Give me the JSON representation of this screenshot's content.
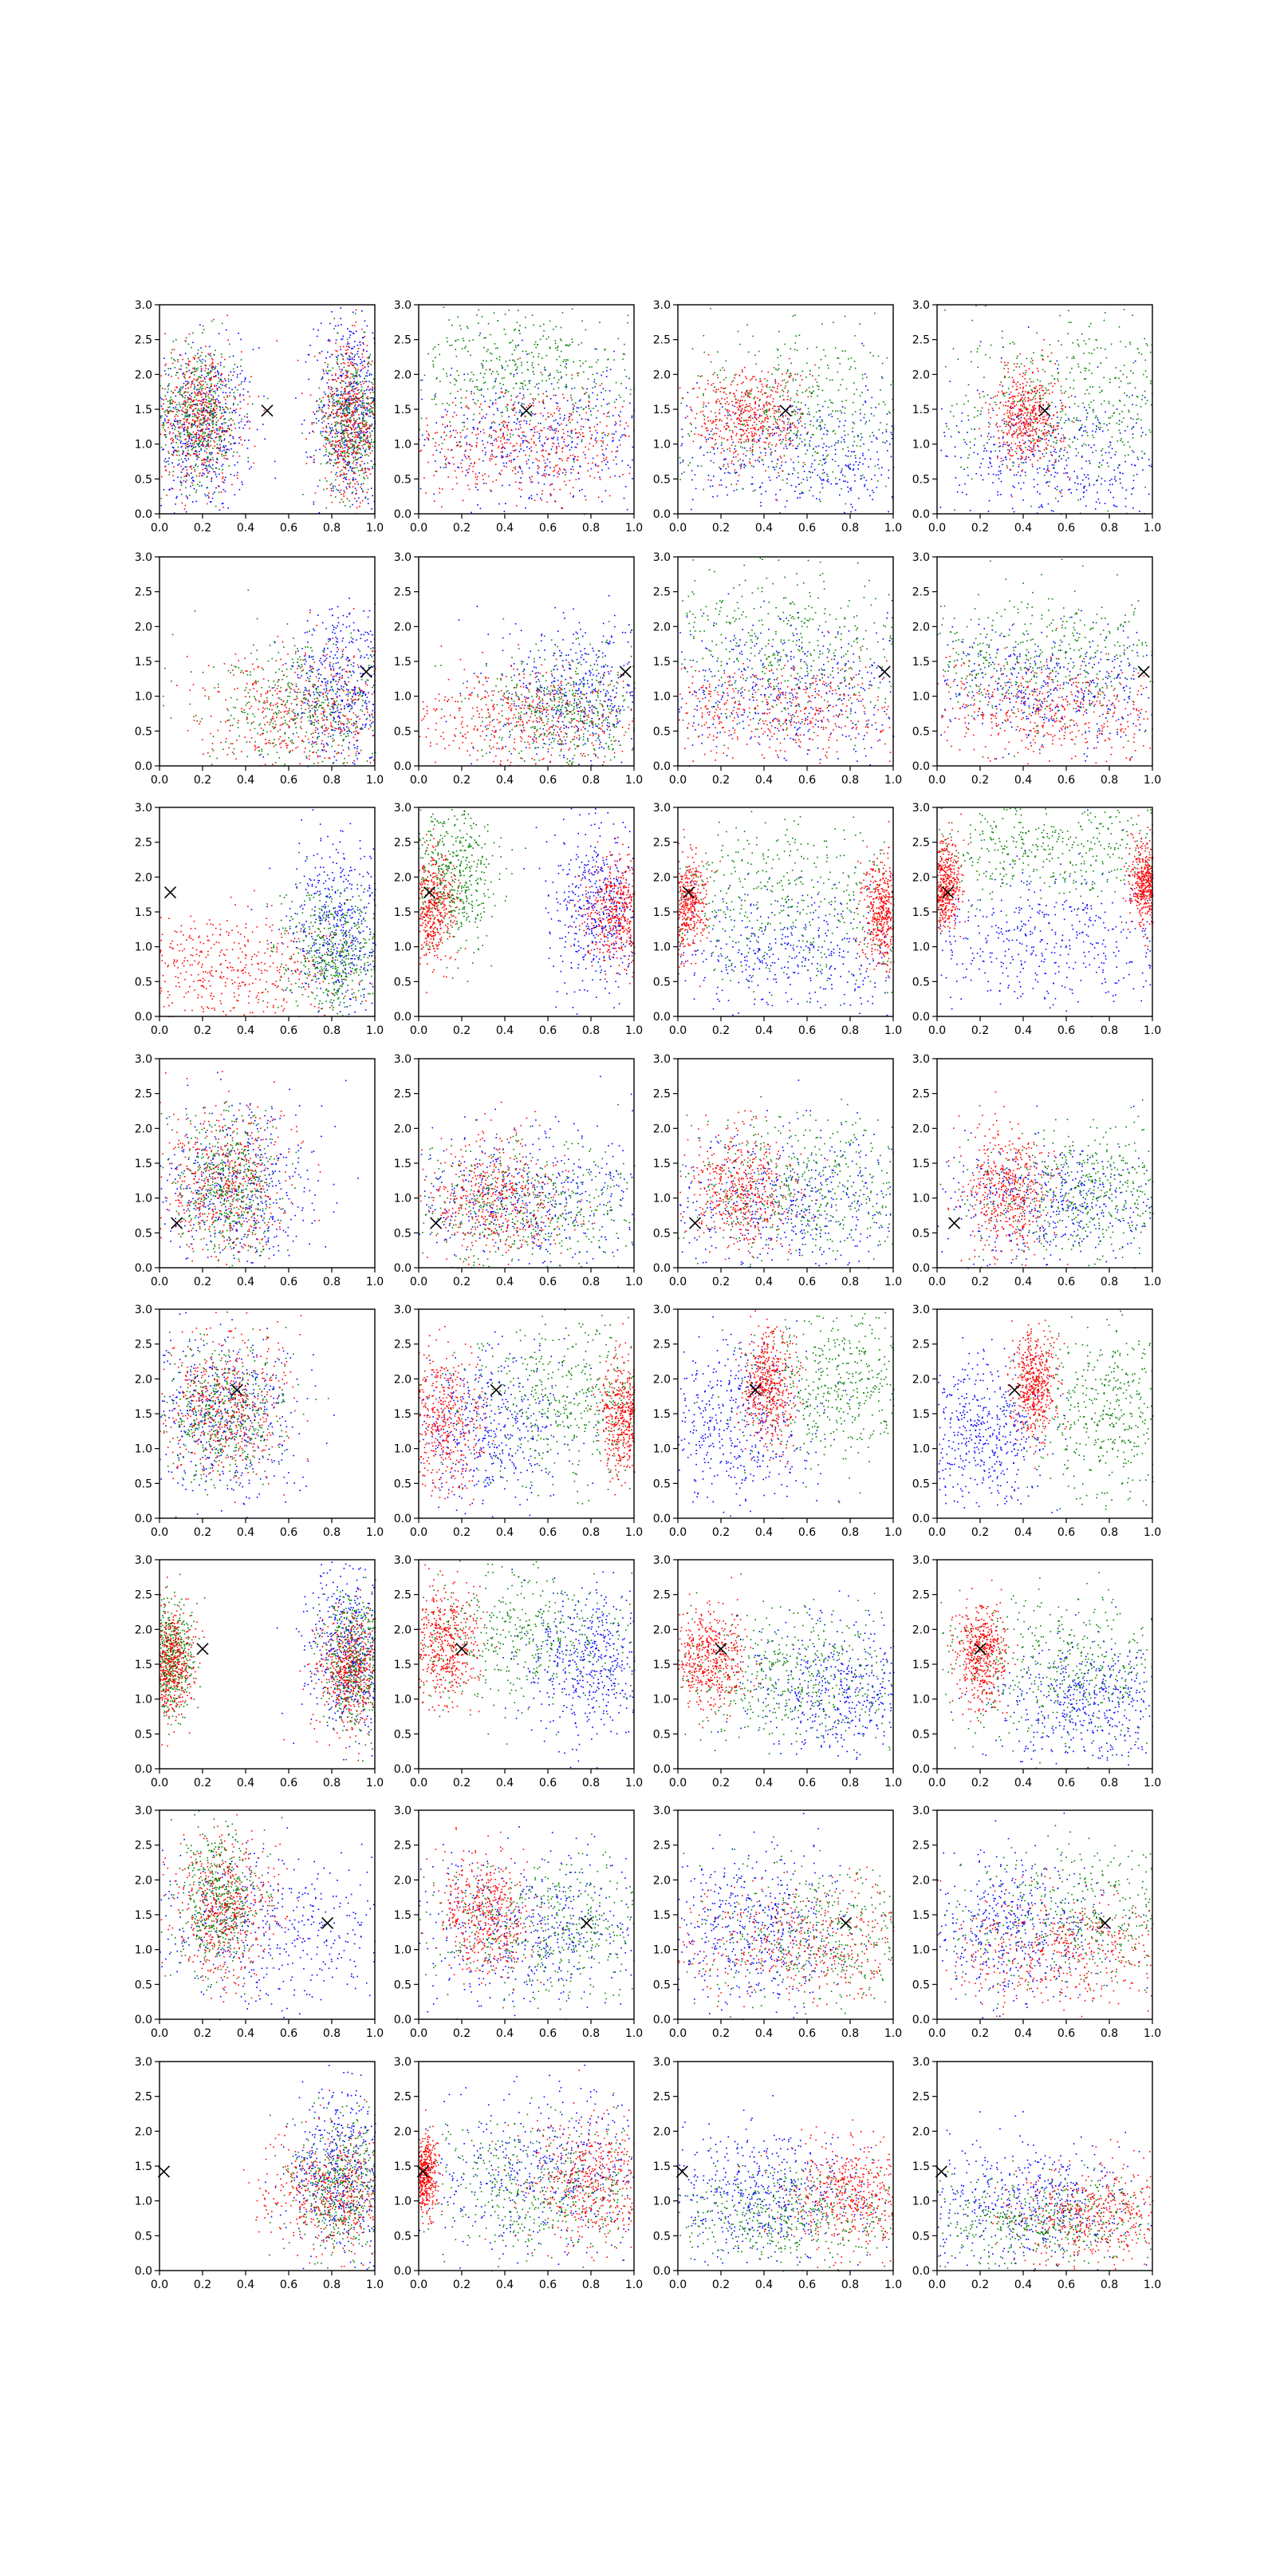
{
  "chart_data": {
    "type": "scatter",
    "layout": {
      "rows": 8,
      "cols": 4
    },
    "xlim": [
      0,
      1
    ],
    "ylim": [
      0,
      3
    ],
    "xticks": [
      "0.0",
      "0.2",
      "0.4",
      "0.6",
      "0.8",
      "1.0"
    ],
    "yticks": [
      "0.0",
      "0.5",
      "1.0",
      "1.5",
      "2.0",
      "2.5",
      "3.0"
    ],
    "grid": false,
    "series_colors": {
      "red": "#ff0000",
      "green": "#008000",
      "blue": "#0000ff"
    },
    "marker_color": "#000000",
    "rows": [
      {
        "marker": [
          0.5,
          1.48
        ],
        "panels": [
          {
            "red": [
              [
                0.18,
                1.4,
                0.1,
                0.5
              ],
              [
                0.88,
                1.3,
                0.08,
                0.55
              ]
            ],
            "green": [
              [
                0.18,
                1.45,
                0.1,
                0.5
              ],
              [
                0.9,
                1.3,
                0.08,
                0.55
              ]
            ],
            "blue": [
              [
                0.2,
                1.2,
                0.12,
                0.6
              ],
              [
                0.88,
                1.5,
                0.08,
                0.7
              ]
            ]
          },
          {
            "red": [
              [
                0.5,
                1.0,
                0.3,
                0.4
              ]
            ],
            "green": [
              [
                0.5,
                2.0,
                0.3,
                0.5
              ]
            ],
            "blue": [
              [
                0.55,
                1.1,
                0.3,
                0.5
              ]
            ]
          },
          {
            "red": [
              [
                0.33,
                1.4,
                0.13,
                0.35
              ]
            ],
            "green": [
              [
                0.55,
                1.5,
                0.3,
                0.6
              ]
            ],
            "blue": [
              [
                0.6,
                0.8,
                0.35,
                0.5
              ]
            ]
          },
          {
            "red": [
              [
                0.42,
                1.4,
                0.08,
                0.35
              ]
            ],
            "green": [
              [
                0.65,
                1.6,
                0.3,
                0.6
              ]
            ],
            "blue": [
              [
                0.55,
                0.8,
                0.3,
                0.5
              ]
            ]
          }
        ]
      },
      {
        "marker": [
          0.96,
          1.35
        ],
        "panels": [
          {
            "red": [
              [
                0.7,
                0.8,
                0.25,
                0.45
              ]
            ],
            "green": [
              [
                0.7,
                0.8,
                0.25,
                0.45
              ]
            ],
            "blue": [
              [
                0.85,
                1.1,
                0.12,
                0.6
              ]
            ]
          },
          {
            "red": [
              [
                0.5,
                0.7,
                0.3,
                0.35
              ]
            ],
            "green": [
              [
                0.7,
                0.8,
                0.2,
                0.45
              ]
            ],
            "blue": [
              [
                0.75,
                1.0,
                0.2,
                0.55
              ]
            ]
          },
          {
            "red": [
              [
                0.45,
                0.8,
                0.35,
                0.35
              ]
            ],
            "green": [
              [
                0.5,
                1.7,
                0.35,
                0.6
              ]
            ],
            "blue": [
              [
                0.5,
                1.1,
                0.35,
                0.5
              ]
            ]
          },
          {
            "red": [
              [
                0.55,
                0.8,
                0.35,
                0.35
              ]
            ],
            "green": [
              [
                0.5,
                1.5,
                0.35,
                0.5
              ]
            ],
            "blue": [
              [
                0.5,
                1.1,
                0.35,
                0.45
              ]
            ]
          }
        ]
      },
      {
        "marker": [
          0.05,
          1.78
        ],
        "panels": [
          {
            "red": [
              [
                0.3,
                0.7,
                0.3,
                0.4
              ]
            ],
            "green": [
              [
                0.8,
                0.9,
                0.12,
                0.45
              ]
            ],
            "blue": [
              [
                0.85,
                1.3,
                0.12,
                0.6
              ]
            ]
          },
          {
            "red": [
              [
                0.92,
                1.5,
                0.08,
                0.4
              ],
              [
                0.05,
                1.6,
                0.06,
                0.4
              ]
            ],
            "green": [
              [
                0.15,
                2.0,
                0.1,
                0.5
              ]
            ],
            "blue": [
              [
                0.85,
                1.6,
                0.12,
                0.6
              ]
            ]
          },
          {
            "red": [
              [
                0.03,
                1.6,
                0.05,
                0.35
              ],
              [
                0.95,
                1.5,
                0.05,
                0.4
              ]
            ],
            "green": [
              [
                0.5,
                1.6,
                0.35,
                0.6
              ]
            ],
            "blue": [
              [
                0.5,
                0.9,
                0.35,
                0.5
              ]
            ]
          },
          {
            "red": [
              [
                0.03,
                1.9,
                0.04,
                0.3
              ],
              [
                0.97,
                1.9,
                0.04,
                0.3
              ]
            ],
            "green": [
              [
                0.5,
                2.4,
                0.35,
                0.35
              ]
            ],
            "blue": [
              [
                0.5,
                1.1,
                0.35,
                0.5
              ]
            ]
          }
        ]
      },
      {
        "marker": [
          0.08,
          0.64
        ],
        "panels": [
          {
            "red": [
              [
                0.3,
                1.2,
                0.15,
                0.55
              ]
            ],
            "green": [
              [
                0.32,
                1.2,
                0.12,
                0.5
              ]
            ],
            "blue": [
              [
                0.35,
                1.2,
                0.18,
                0.6
              ]
            ]
          },
          {
            "red": [
              [
                0.35,
                1.0,
                0.15,
                0.45
              ]
            ],
            "green": [
              [
                0.5,
                0.9,
                0.3,
                0.45
              ]
            ],
            "blue": [
              [
                0.5,
                1.0,
                0.3,
                0.5
              ]
            ]
          },
          {
            "red": [
              [
                0.3,
                1.1,
                0.12,
                0.45
              ]
            ],
            "green": [
              [
                0.6,
                1.1,
                0.3,
                0.5
              ]
            ],
            "blue": [
              [
                0.5,
                0.9,
                0.3,
                0.5
              ]
            ]
          },
          {
            "red": [
              [
                0.32,
                1.1,
                0.1,
                0.45
              ]
            ],
            "green": [
              [
                0.7,
                1.1,
                0.25,
                0.5
              ]
            ],
            "blue": [
              [
                0.55,
                0.9,
                0.3,
                0.45
              ]
            ]
          }
        ]
      },
      {
        "marker": [
          0.36,
          1.84
        ],
        "panels": [
          {
            "red": [
              [
                0.3,
                1.6,
                0.15,
                0.5
              ]
            ],
            "green": [
              [
                0.3,
                1.55,
                0.15,
                0.5
              ]
            ],
            "blue": [
              [
                0.3,
                1.5,
                0.18,
                0.6
              ]
            ]
          },
          {
            "red": [
              [
                0.1,
                1.4,
                0.1,
                0.5
              ],
              [
                0.95,
                1.5,
                0.05,
                0.4
              ]
            ],
            "green": [
              [
                0.7,
                1.7,
                0.25,
                0.6
              ]
            ],
            "blue": [
              [
                0.3,
                1.3,
                0.2,
                0.55
              ]
            ]
          },
          {
            "red": [
              [
                0.42,
                1.9,
                0.06,
                0.4
              ]
            ],
            "green": [
              [
                0.75,
                2.0,
                0.2,
                0.55
              ]
            ],
            "blue": [
              [
                0.25,
                1.4,
                0.2,
                0.6
              ]
            ]
          },
          {
            "red": [
              [
                0.45,
                1.9,
                0.05,
                0.35
              ]
            ],
            "green": [
              [
                0.8,
                1.5,
                0.2,
                0.6
              ]
            ],
            "blue": [
              [
                0.2,
                1.2,
                0.15,
                0.55
              ]
            ]
          }
        ]
      },
      {
        "marker": [
          0.2,
          1.72
        ],
        "panels": [
          {
            "red": [
              [
                0.05,
                1.5,
                0.05,
                0.4
              ],
              [
                0.88,
                1.4,
                0.08,
                0.4
              ]
            ],
            "green": [
              [
                0.05,
                1.6,
                0.05,
                0.4
              ],
              [
                0.9,
                1.5,
                0.08,
                0.5
              ]
            ],
            "blue": [
              [
                0.88,
                1.7,
                0.1,
                0.6
              ]
            ]
          },
          {
            "red": [
              [
                0.12,
                1.8,
                0.08,
                0.4
              ]
            ],
            "green": [
              [
                0.45,
                1.9,
                0.3,
                0.5
              ]
            ],
            "blue": [
              [
                0.8,
                1.5,
                0.15,
                0.55
              ]
            ]
          },
          {
            "red": [
              [
                0.15,
                1.6,
                0.08,
                0.35
              ]
            ],
            "green": [
              [
                0.5,
                1.3,
                0.3,
                0.5
              ]
            ],
            "blue": [
              [
                0.75,
                1.1,
                0.2,
                0.5
              ]
            ]
          },
          {
            "red": [
              [
                0.2,
                1.65,
                0.06,
                0.35
              ]
            ],
            "green": [
              [
                0.6,
                1.4,
                0.3,
                0.55
              ]
            ],
            "blue": [
              [
                0.7,
                0.9,
                0.2,
                0.45
              ]
            ]
          }
        ]
      },
      {
        "marker": [
          0.78,
          1.38
        ],
        "panels": [
          {
            "red": [
              [
                0.3,
                1.6,
                0.12,
                0.5
              ]
            ],
            "green": [
              [
                0.28,
                1.7,
                0.1,
                0.5
              ]
            ],
            "blue": [
              [
                0.5,
                1.3,
                0.3,
                0.55
              ]
            ]
          },
          {
            "red": [
              [
                0.3,
                1.5,
                0.1,
                0.45
              ]
            ],
            "green": [
              [
                0.6,
                1.3,
                0.3,
                0.5
              ]
            ],
            "blue": [
              [
                0.5,
                1.3,
                0.3,
                0.55
              ]
            ]
          },
          {
            "red": [
              [
                0.6,
                1.1,
                0.35,
                0.4
              ]
            ],
            "green": [
              [
                0.7,
                1.2,
                0.3,
                0.5
              ]
            ],
            "blue": [
              [
                0.35,
                1.3,
                0.2,
                0.55
              ]
            ]
          },
          {
            "red": [
              [
                0.55,
                1.0,
                0.3,
                0.4
              ]
            ],
            "green": [
              [
                0.7,
                1.5,
                0.3,
                0.6
              ]
            ],
            "blue": [
              [
                0.35,
                1.3,
                0.2,
                0.5
              ]
            ]
          }
        ]
      },
      {
        "marker": [
          0.02,
          1.42
        ],
        "panels": [
          {
            "red": [
              [
                0.8,
                1.1,
                0.15,
                0.45
              ]
            ],
            "green": [
              [
                0.85,
                1.2,
                0.12,
                0.5
              ]
            ],
            "blue": [
              [
                0.85,
                1.4,
                0.12,
                0.6
              ]
            ]
          },
          {
            "red": [
              [
                0.8,
                1.3,
                0.15,
                0.45
              ],
              [
                0.02,
                1.4,
                0.03,
                0.3
              ]
            ],
            "green": [
              [
                0.6,
                1.2,
                0.3,
                0.5
              ]
            ],
            "blue": [
              [
                0.6,
                1.4,
                0.3,
                0.55
              ]
            ]
          },
          {
            "red": [
              [
                0.8,
                1.1,
                0.15,
                0.4
              ]
            ],
            "green": [
              [
                0.5,
                0.8,
                0.3,
                0.35
              ]
            ],
            "blue": [
              [
                0.4,
                1.1,
                0.25,
                0.5
              ]
            ]
          },
          {
            "red": [
              [
                0.75,
                0.8,
                0.2,
                0.35
              ]
            ],
            "green": [
              [
                0.5,
                0.7,
                0.3,
                0.35
              ]
            ],
            "blue": [
              [
                0.4,
                1.0,
                0.25,
                0.45
              ]
            ]
          }
        ]
      }
    ]
  }
}
